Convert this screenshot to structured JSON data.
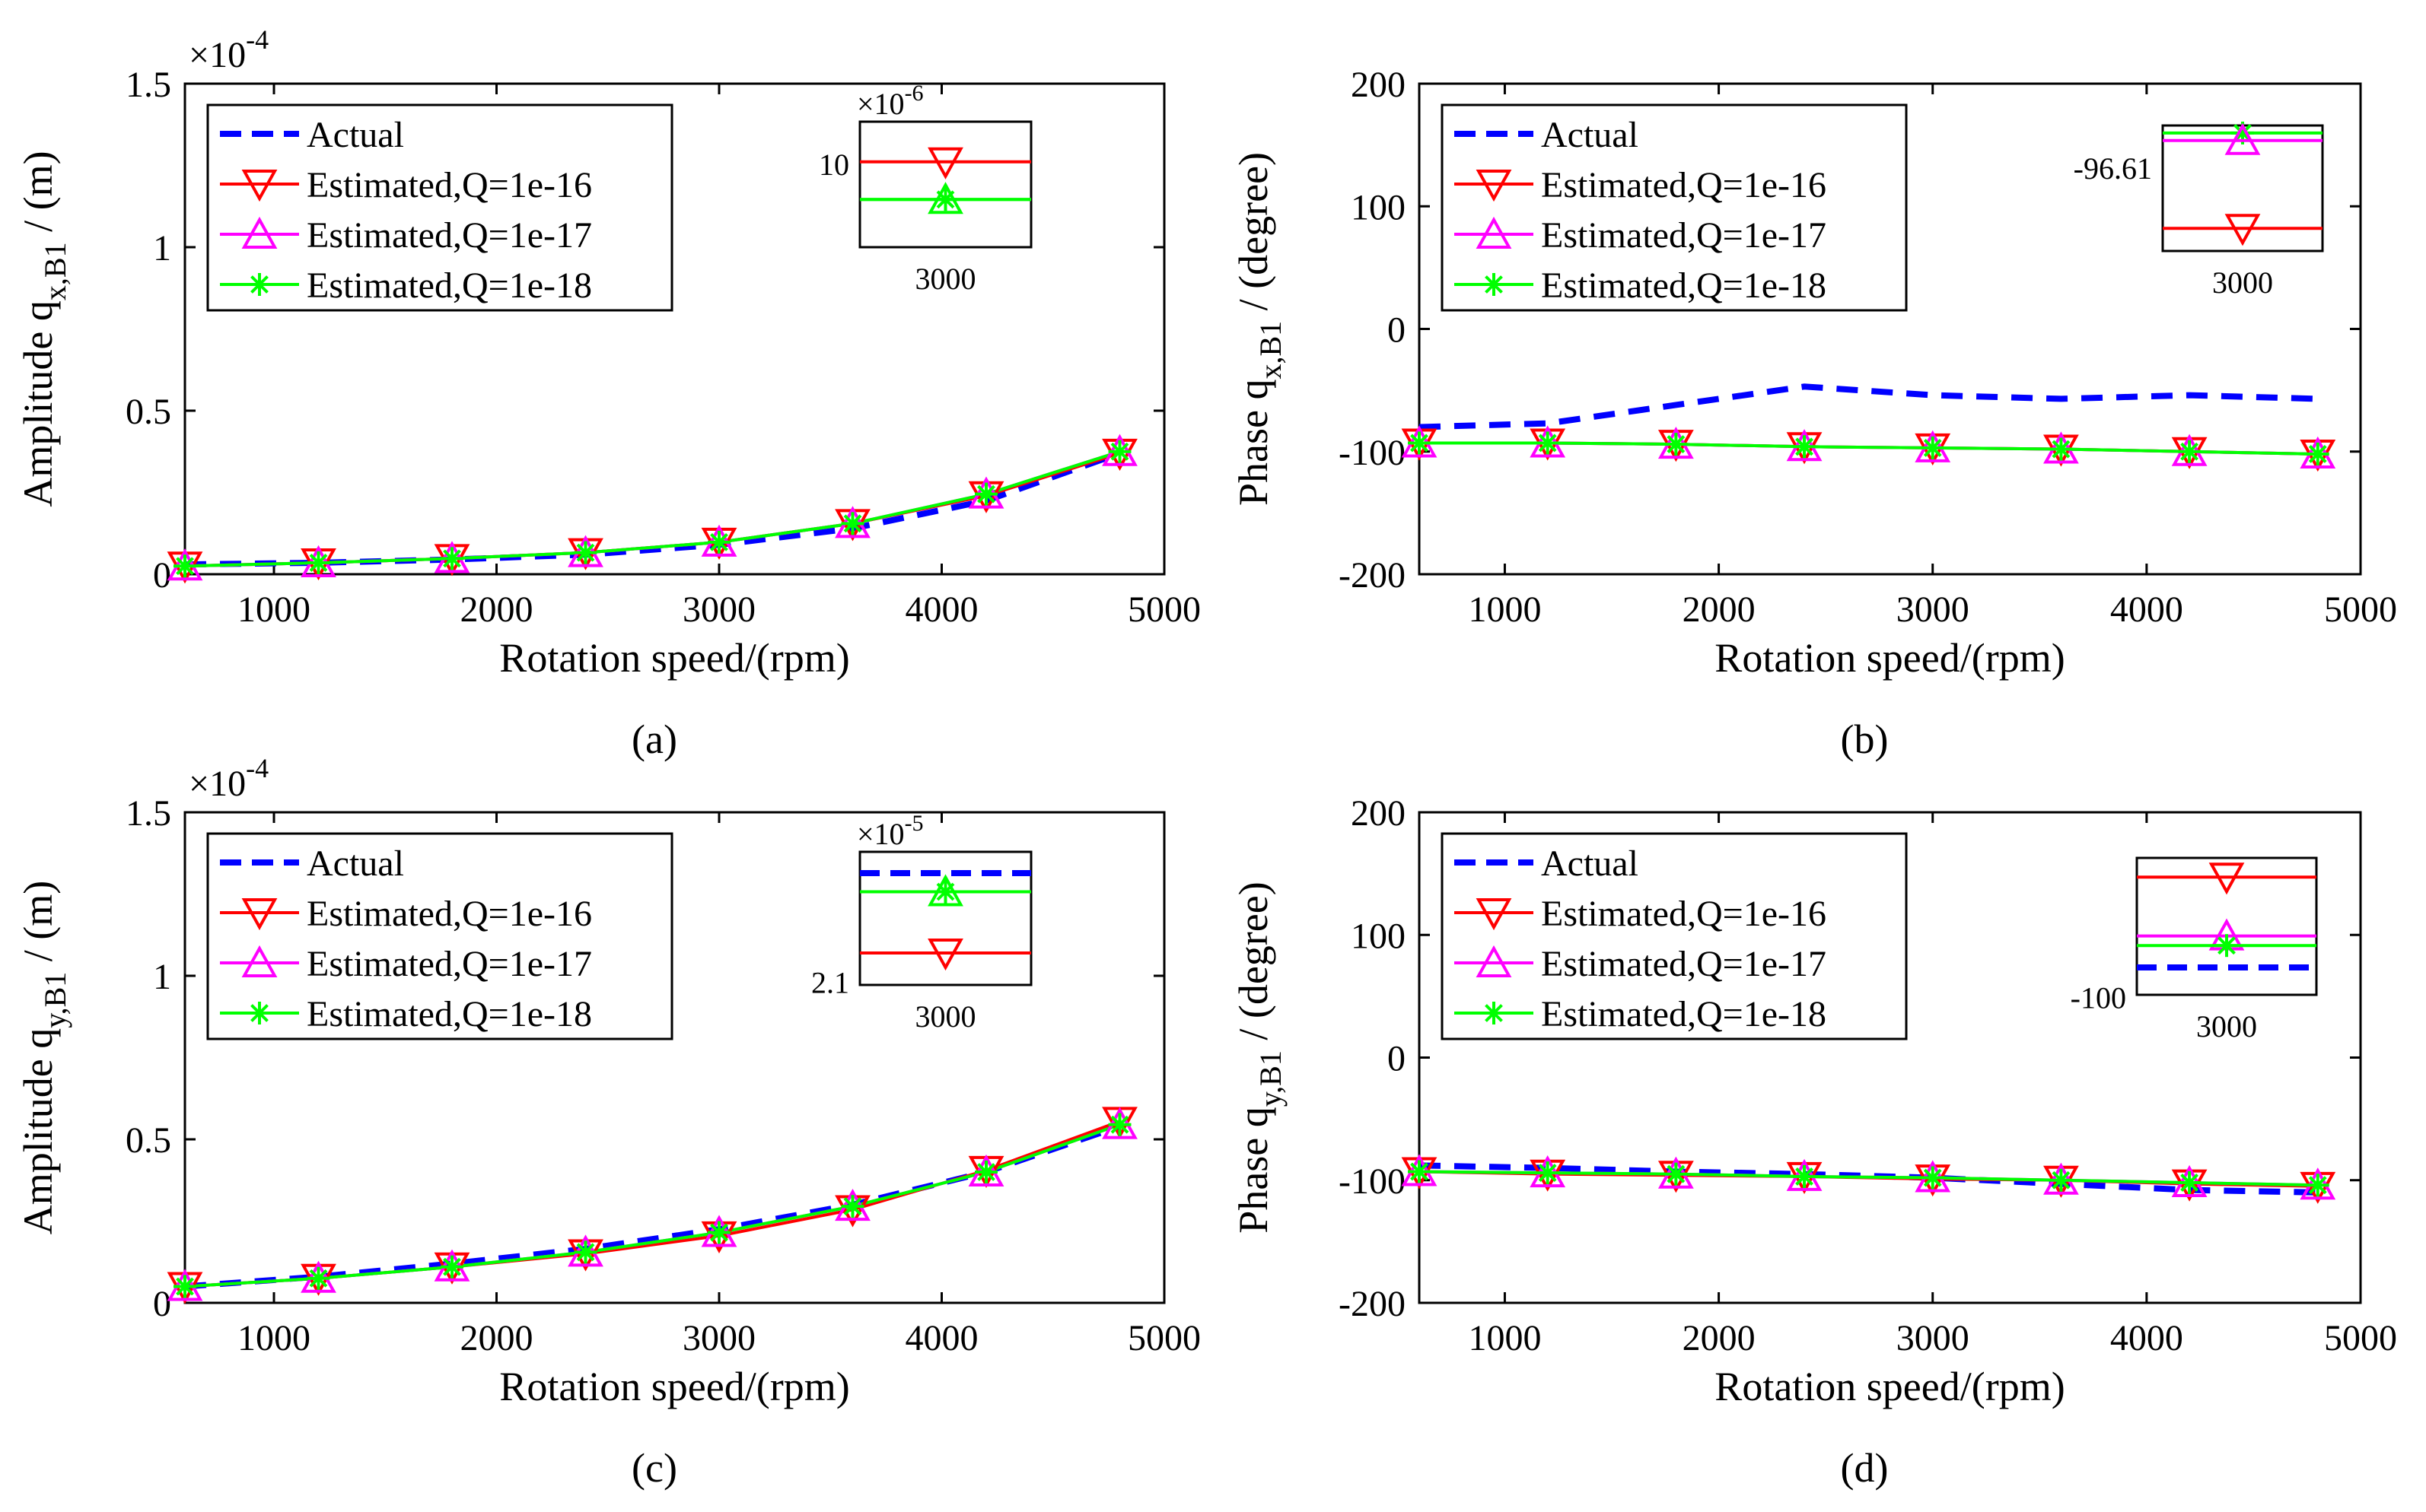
{
  "colors": {
    "actual": "#0000ff",
    "q16": "#ff0000",
    "q17": "#ff00ff",
    "q18": "#00ff00"
  },
  "chart_data": [
    {
      "panel": "a",
      "type": "line",
      "caption": "(a)",
      "xlabel": "Rotation speed/(rpm)",
      "ylabel_main": "Amplitude  q",
      "ylabel_sub": "x,B1",
      "ylabel_unit": " / (m)",
      "exponent_base": "×10",
      "exponent_power": "-4",
      "x": [
        600,
        1200,
        1800,
        2400,
        3000,
        3600,
        4200,
        4800
      ],
      "xlim": [
        600,
        5000
      ],
      "xticks": [
        1000,
        2000,
        3000,
        4000,
        5000
      ],
      "xtick_labels": [
        "1000",
        "2000",
        "3000",
        "4000",
        "5000"
      ],
      "ylim": [
        0,
        1.5
      ],
      "yticks": [
        0,
        0.5,
        1,
        1.5
      ],
      "ytick_labels": [
        "0",
        "0.5",
        "1",
        "1.5"
      ],
      "legend_position": "top-left",
      "series": [
        {
          "name": "Actual",
          "color_key": "actual",
          "style": "dashed",
          "marker": "none",
          "values": [
            0.03,
            0.035,
            0.045,
            0.06,
            0.09,
            0.14,
            0.225,
            0.37
          ]
        },
        {
          "name": "Estimated,Q=1e-16",
          "color_key": "q16",
          "style": "solid",
          "marker": "triangle-down",
          "values": [
            0.025,
            0.035,
            0.048,
            0.066,
            0.098,
            0.155,
            0.24,
            0.37
          ]
        },
        {
          "name": "Estimated,Q=1e-17",
          "color_key": "q17",
          "style": "solid",
          "marker": "triangle-up",
          "values": [
            0.025,
            0.035,
            0.048,
            0.066,
            0.098,
            0.155,
            0.245,
            0.375
          ]
        },
        {
          "name": "Estimated,Q=1e-18",
          "color_key": "q18",
          "style": "solid",
          "marker": "asterisk",
          "values": [
            0.025,
            0.035,
            0.048,
            0.066,
            0.098,
            0.155,
            0.245,
            0.375
          ]
        }
      ],
      "inset": {
        "exponent_base": "×10",
        "exponent_power": "-6",
        "xtick_label": "3000",
        "ytick_label": "10",
        "lines": [
          {
            "color_key": "q16",
            "marker": "triangle-down",
            "level": 0.32
          },
          {
            "color_key": "q18",
            "marker": "triangle-up",
            "level": 0.62
          },
          {
            "color_key": "q18",
            "marker": "asterisk",
            "level": 0.62
          }
        ]
      }
    },
    {
      "panel": "b",
      "type": "line",
      "caption": "(b)",
      "xlabel": "Rotation speed/(rpm)",
      "ylabel_main": "Phase  q",
      "ylabel_sub": "x,B1",
      "ylabel_unit": " / (degree)",
      "exponent_base": "",
      "exponent_power": "",
      "x": [
        600,
        1200,
        1800,
        2400,
        3000,
        3600,
        4200,
        4800
      ],
      "xlim": [
        600,
        5000
      ],
      "xticks": [
        1000,
        2000,
        3000,
        4000,
        5000
      ],
      "xtick_labels": [
        "1000",
        "2000",
        "3000",
        "4000",
        "5000"
      ],
      "ylim": [
        -200,
        200
      ],
      "yticks": [
        -200,
        -100,
        0,
        100,
        200
      ],
      "ytick_labels": [
        "-200",
        "-100",
        "0",
        "100",
        "200"
      ],
      "legend_position": "top-left",
      "series": [
        {
          "name": "Actual",
          "color_key": "actual",
          "style": "dashed",
          "marker": "none",
          "values": [
            -80,
            -77,
            -62,
            -47,
            -54,
            -57,
            -54,
            -57
          ]
        },
        {
          "name": "Estimated,Q=1e-16",
          "color_key": "q16",
          "style": "solid",
          "marker": "triangle-down",
          "values": [
            -93,
            -93,
            -94,
            -96,
            -97,
            -98,
            -100,
            -102
          ]
        },
        {
          "name": "Estimated,Q=1e-17",
          "color_key": "q17",
          "style": "solid",
          "marker": "triangle-up",
          "values": [
            -93,
            -93,
            -94,
            -96,
            -97,
            -98,
            -100,
            -102
          ]
        },
        {
          "name": "Estimated,Q=1e-18",
          "color_key": "q18",
          "style": "solid",
          "marker": "asterisk",
          "values": [
            -93,
            -93,
            -94,
            -96,
            -97,
            -98,
            -100,
            -102
          ]
        }
      ],
      "inset": {
        "exponent_base": "",
        "exponent_power": "",
        "xtick_label": "3000",
        "ytick_label": "-96.61",
        "lines": [
          {
            "color_key": "q18",
            "marker": "asterisk",
            "level": 0.06
          },
          {
            "color_key": "q17",
            "marker": "triangle-up",
            "level": 0.12
          },
          {
            "color_key": "q16",
            "marker": "triangle-down",
            "level": 0.82
          }
        ]
      }
    },
    {
      "panel": "c",
      "type": "line",
      "caption": "(c)",
      "xlabel": "Rotation speed/(rpm)",
      "ylabel_main": "Amplitude  q",
      "ylabel_sub": "y,B1",
      "ylabel_unit": " / (m)",
      "exponent_base": "×10",
      "exponent_power": "-4",
      "x": [
        600,
        1200,
        1800,
        2400,
        3000,
        3600,
        4200,
        4800
      ],
      "xlim": [
        600,
        5000
      ],
      "xticks": [
        1000,
        2000,
        3000,
        4000,
        5000
      ],
      "xtick_labels": [
        "1000",
        "2000",
        "3000",
        "4000",
        "5000"
      ],
      "ylim": [
        0,
        1.5
      ],
      "yticks": [
        0,
        0.5,
        1,
        1.5
      ],
      "ytick_labels": [
        "0",
        "0.5",
        "1",
        "1.5"
      ],
      "legend_position": "top-left",
      "series": [
        {
          "name": "Actual",
          "color_key": "actual",
          "style": "dashed",
          "marker": "none",
          "values": [
            0.05,
            0.08,
            0.12,
            0.165,
            0.225,
            0.3,
            0.4,
            0.54
          ]
        },
        {
          "name": "Estimated,Q=1e-16",
          "color_key": "q16",
          "style": "solid",
          "marker": "triangle-down",
          "values": [
            0.05,
            0.075,
            0.11,
            0.15,
            0.205,
            0.285,
            0.405,
            0.555
          ]
        },
        {
          "name": "Estimated,Q=1e-17",
          "color_key": "q17",
          "style": "solid",
          "marker": "triangle-up",
          "values": [
            0.05,
            0.075,
            0.11,
            0.155,
            0.215,
            0.295,
            0.4,
            0.545
          ]
        },
        {
          "name": "Estimated,Q=1e-18",
          "color_key": "q18",
          "style": "solid",
          "marker": "asterisk",
          "values": [
            0.05,
            0.075,
            0.11,
            0.155,
            0.215,
            0.295,
            0.4,
            0.545
          ]
        }
      ],
      "inset": {
        "exponent_base": "×10",
        "exponent_power": "-5",
        "xtick_label": "3000",
        "ytick_label": "2.1",
        "lines": [
          {
            "color_key": "actual",
            "marker": "none",
            "level": 0.16,
            "dashed": true
          },
          {
            "color_key": "q18",
            "marker": "triangle-up",
            "level": 0.3
          },
          {
            "color_key": "q18",
            "marker": "asterisk",
            "level": 0.3
          },
          {
            "color_key": "q16",
            "marker": "triangle-down",
            "level": 0.76
          }
        ]
      }
    },
    {
      "panel": "d",
      "type": "line",
      "caption": "(d)",
      "xlabel": "Rotation speed/(rpm)",
      "ylabel_main": "Phase  q",
      "ylabel_sub": "y,B1",
      "ylabel_unit": " / (degree)",
      "exponent_base": "",
      "exponent_power": "",
      "x": [
        600,
        1200,
        1800,
        2400,
        3000,
        3600,
        4200,
        4800
      ],
      "xlim": [
        600,
        5000
      ],
      "xticks": [
        1000,
        2000,
        3000,
        4000,
        5000
      ],
      "xtick_labels": [
        "1000",
        "2000",
        "3000",
        "4000",
        "5000"
      ],
      "ylim": [
        -200,
        200
      ],
      "yticks": [
        -200,
        -100,
        0,
        100,
        200
      ],
      "ytick_labels": [
        "-200",
        "-100",
        "0",
        "100",
        "200"
      ],
      "legend_position": "top-left",
      "series": [
        {
          "name": "Actual",
          "color_key": "actual",
          "style": "dashed",
          "marker": "none",
          "values": [
            -88,
            -90,
            -93,
            -95,
            -98,
            -103,
            -108,
            -110
          ]
        },
        {
          "name": "Estimated,Q=1e-16",
          "color_key": "q16",
          "style": "solid",
          "marker": "triangle-down",
          "values": [
            -93,
            -95,
            -96,
            -97,
            -99,
            -100,
            -103,
            -105
          ]
        },
        {
          "name": "Estimated,Q=1e-17",
          "color_key": "q17",
          "style": "solid",
          "marker": "triangle-up",
          "values": [
            -93,
            -94,
            -95,
            -97,
            -98,
            -100,
            -102,
            -104
          ]
        },
        {
          "name": "Estimated,Q=1e-18",
          "color_key": "q18",
          "style": "solid",
          "marker": "asterisk",
          "values": [
            -93,
            -94,
            -95,
            -97,
            -98,
            -100,
            -102,
            -104
          ]
        }
      ],
      "inset": {
        "exponent_base": "",
        "exponent_power": "",
        "xtick_label": "3000",
        "ytick_label": "-100",
        "lines": [
          {
            "color_key": "q16",
            "marker": "triangle-down",
            "level": 0.14
          },
          {
            "color_key": "q17",
            "marker": "triangle-up",
            "level": 0.57
          },
          {
            "color_key": "q18",
            "marker": "asterisk",
            "level": 0.64
          },
          {
            "color_key": "actual",
            "marker": "none",
            "level": 0.8,
            "dashed": true
          }
        ]
      }
    }
  ]
}
